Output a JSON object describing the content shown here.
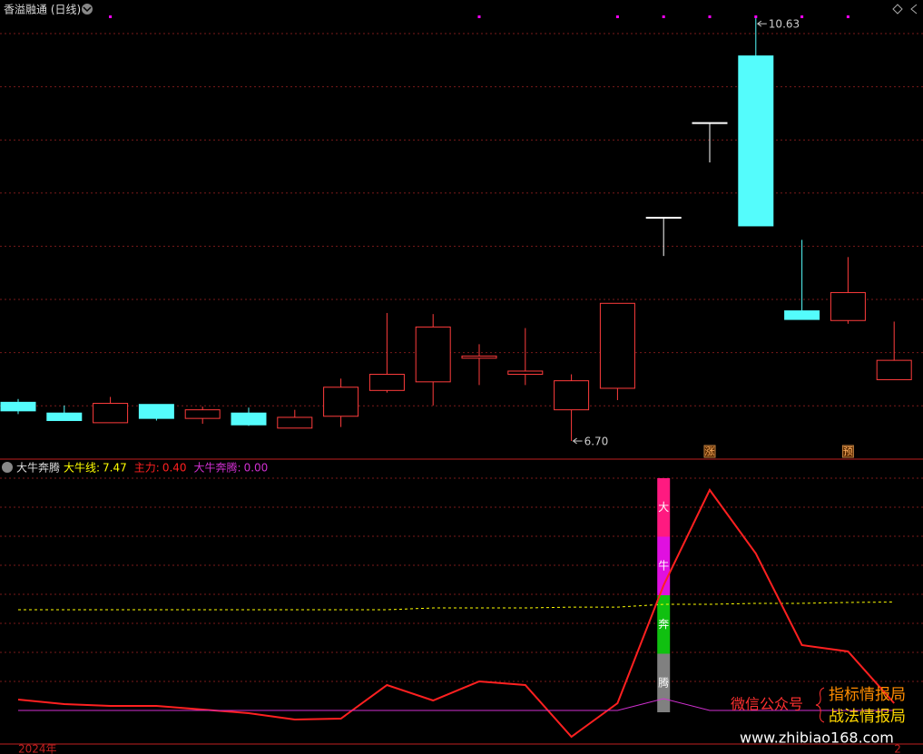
{
  "chart_data": [
    {
      "type": "candlestick",
      "title": "香溢融通 (日线)",
      "open": [
        7.06,
        6.96,
        6.87,
        7.04,
        6.91,
        6.96,
        6.82,
        6.93,
        7.17,
        7.25,
        7.47,
        7.32,
        6.99,
        7.19,
        8.78,
        9.66,
        10.28,
        7.91,
        7.82,
        7.27
      ],
      "high": [
        7.09,
        7.03,
        7.11,
        7.04,
        7.02,
        7.01,
        6.99,
        7.28,
        7.89,
        7.88,
        7.6,
        7.75,
        7.32,
        7.98,
        8.78,
        9.66,
        10.63,
        8.57,
        8.41,
        7.81
      ],
      "low": [
        6.95,
        6.89,
        6.87,
        6.89,
        6.86,
        6.84,
        6.82,
        6.83,
        7.15,
        7.03,
        7.22,
        7.22,
        6.7,
        7.08,
        8.42,
        9.29,
        8.7,
        7.83,
        7.79,
        7.27
      ],
      "close": [
        6.98,
        6.89,
        7.05,
        6.91,
        6.99,
        6.85,
        6.92,
        7.2,
        7.32,
        7.76,
        7.49,
        7.35,
        7.26,
        7.98,
        8.78,
        9.66,
        8.7,
        7.83,
        8.08,
        7.45
      ],
      "up_color": "#ff3c3c",
      "down_color": "#54fcfc",
      "flat_color": "#ffffff",
      "ylim": [
        6.54,
        10.8
      ],
      "annotations": [
        {
          "index": 16,
          "label": "10.63"
        },
        {
          "index": 12,
          "label": "6.70"
        }
      ],
      "signals": [
        0,
        0,
        1,
        0,
        0,
        0,
        0,
        0,
        0,
        0,
        1,
        0,
        0,
        1,
        1,
        1,
        1,
        1,
        1,
        0
      ],
      "signal_color": "#ff00ff",
      "tags": [
        {
          "index": 15,
          "label": "涨"
        },
        {
          "index": 18,
          "label": "预"
        }
      ]
    },
    {
      "type": "line",
      "title": "大牛奔腾",
      "ylim": [
        -1.85,
        13.8
      ],
      "y2lim": [
        -2.31,
        17.25
      ],
      "series": [
        {
          "name": "大牛线:",
          "color": "#ffff00",
          "axis": "y2",
          "dashed": true,
          "value_label": "7.47",
          "values": [
            6.94,
            6.94,
            6.94,
            6.94,
            6.94,
            6.94,
            6.94,
            6.94,
            6.94,
            7.06,
            7.06,
            7.06,
            7.12,
            7.12,
            7.31,
            7.31,
            7.38,
            7.38,
            7.44,
            7.47
          ]
        },
        {
          "name": "主力:",
          "color": "#ff2020",
          "value_label": "0.40",
          "values": [
            0.6,
            0.35,
            0.25,
            0.25,
            0.05,
            -0.15,
            -0.5,
            -0.45,
            1.4,
            0.55,
            1.6,
            1.4,
            -1.45,
            0.4,
            6.9,
            12.15,
            8.65,
            3.6,
            3.25,
            0.4
          ]
        },
        {
          "name": "大牛奔腾:",
          "color": "#d030d0",
          "value_label": "0.00",
          "values": [
            0,
            0,
            0,
            0,
            0,
            0,
            0,
            0,
            0,
            0,
            0,
            0,
            0,
            0,
            0.65,
            0,
            0,
            0,
            0,
            0
          ]
        }
      ],
      "signal_bar": {
        "index": 14,
        "segments": [
          {
            "label": "大",
            "color": "#ff1a80"
          },
          {
            "label": "牛",
            "color": "#e010e0"
          },
          {
            "label": "奔",
            "color": "#10c010"
          },
          {
            "label": "腾",
            "color": "#808080"
          }
        ]
      },
      "x_labels": [
        {
          "index": 0,
          "label": "2024年"
        },
        {
          "index": 19,
          "label": "2"
        }
      ]
    }
  ],
  "watermark": {
    "account": "微信公众号",
    "lines": [
      "指标情报局",
      "战法情报局"
    ],
    "url": "www.zhibiao168.com"
  }
}
